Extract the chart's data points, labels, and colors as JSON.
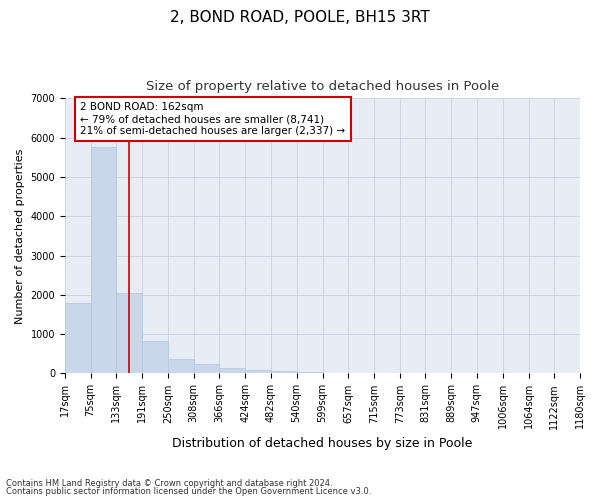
{
  "title_line1": "2, BOND ROAD, POOLE, BH15 3RT",
  "title_line2": "Size of property relative to detached houses in Poole",
  "xlabel": "Distribution of detached houses by size in Poole",
  "ylabel": "Number of detached properties",
  "footnote1": "Contains HM Land Registry data © Crown copyright and database right 2024.",
  "footnote2": "Contains public sector information licensed under the Open Government Licence v3.0.",
  "annotation_title": "2 BOND ROAD: 162sqm",
  "annotation_line2": "← 79% of detached houses are smaller (8,741)",
  "annotation_line3": "21% of semi-detached houses are larger (2,337) →",
  "bar_color": "#c8d8ea",
  "bar_edge_color": "#b0c8e0",
  "vline_color": "#cc0000",
  "vline_x": 162,
  "bin_edges": [
    17,
    75,
    133,
    191,
    250,
    308,
    366,
    424,
    482,
    540,
    599,
    657,
    715,
    773,
    831,
    889,
    947,
    1006,
    1064,
    1122,
    1180
  ],
  "bar_heights": [
    1780,
    5750,
    2050,
    820,
    360,
    230,
    130,
    100,
    50,
    40,
    15,
    8,
    5,
    2,
    1,
    1,
    0,
    0,
    0,
    0
  ],
  "ylim": [
    0,
    7000
  ],
  "yticks": [
    0,
    1000,
    2000,
    3000,
    4000,
    5000,
    6000,
    7000
  ],
  "background_color": "#ffffff",
  "plot_bg_color": "#e8edf5",
  "grid_color": "#c8d0e0",
  "title_fontsize": 11,
  "subtitle_fontsize": 9.5,
  "ylabel_fontsize": 8,
  "xlabel_fontsize": 9,
  "tick_fontsize": 7,
  "annot_fontsize": 7.5,
  "footnote_fontsize": 6
}
